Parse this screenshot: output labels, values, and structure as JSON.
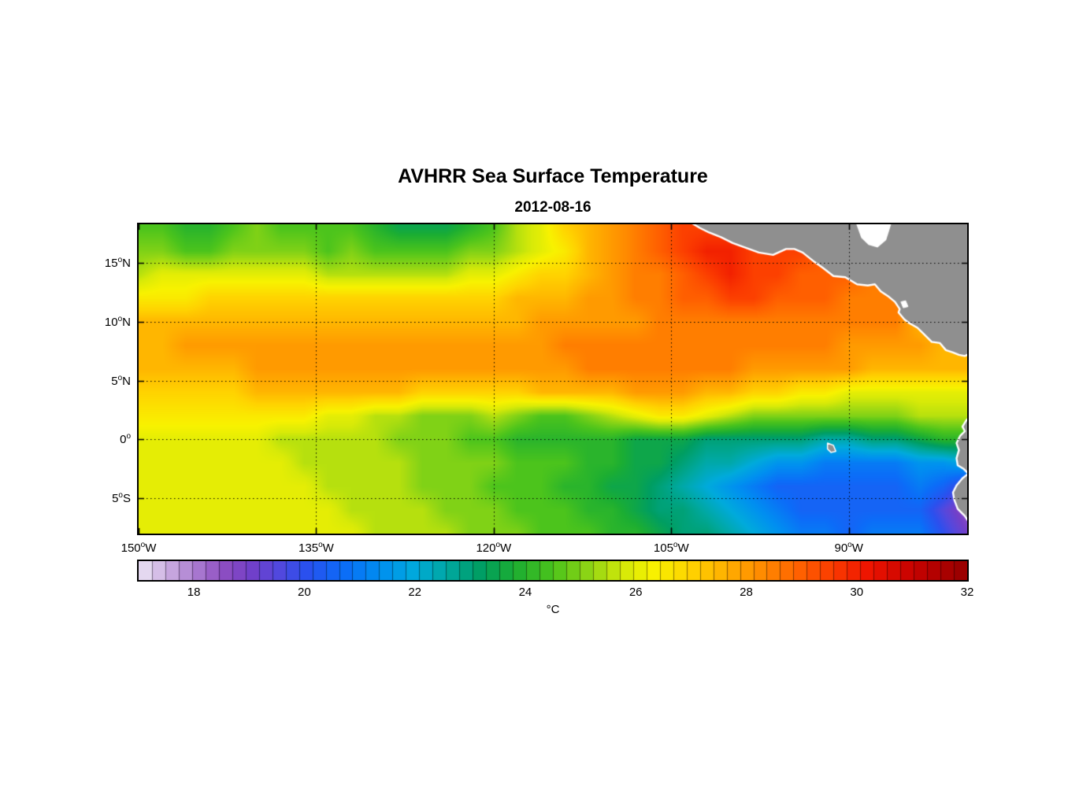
{
  "figure": {
    "title": "AVHRR Sea Surface Temperature",
    "subtitle": "2012-08-16"
  },
  "axes": {
    "lon_range": [
      -150,
      -80
    ],
    "lat_range": [
      -8,
      18.3
    ],
    "x_ticks": [
      {
        "value": -150,
        "label": "150°W"
      },
      {
        "value": -135,
        "label": "135°W"
      },
      {
        "value": -120,
        "label": "120°W"
      },
      {
        "value": -105,
        "label": "105°W"
      },
      {
        "value": -90,
        "label": "90°W"
      }
    ],
    "y_ticks": [
      {
        "value": 15,
        "label": "15°N"
      },
      {
        "value": 10,
        "label": "10°N"
      },
      {
        "value": 5,
        "label": "5°N"
      },
      {
        "value": 0,
        "label": "0°"
      },
      {
        "value": -5,
        "label": "5°S"
      }
    ],
    "grid_lons": [
      -135,
      -120,
      -105,
      -90
    ],
    "grid_lats": [
      15,
      10,
      5,
      0,
      -5
    ]
  },
  "colorbar": {
    "label": "°C",
    "ticks": [
      18,
      20,
      22,
      24,
      26,
      28,
      30,
      32
    ],
    "range": [
      17,
      32
    ],
    "segments": 62,
    "stops": [
      [
        17.0,
        "#ece6f5"
      ],
      [
        17.5,
        "#cdb0e2"
      ],
      [
        18.0,
        "#ad7fd2"
      ],
      [
        18.5,
        "#8f50c2"
      ],
      [
        19.0,
        "#7440c8"
      ],
      [
        19.5,
        "#5548dd"
      ],
      [
        20.0,
        "#2c50ee"
      ],
      [
        20.7,
        "#0c6cf8"
      ],
      [
        21.4,
        "#0090f0"
      ],
      [
        22.0,
        "#00aadc"
      ],
      [
        22.6,
        "#00a8a0"
      ],
      [
        23.2,
        "#009e62"
      ],
      [
        23.8,
        "#1cae32"
      ],
      [
        24.5,
        "#4cc41c"
      ],
      [
        25.2,
        "#95d714"
      ],
      [
        25.8,
        "#d8ea08"
      ],
      [
        26.3,
        "#f8f200"
      ],
      [
        27.0,
        "#ffd300"
      ],
      [
        27.7,
        "#ffab00"
      ],
      [
        28.3,
        "#ff8a00"
      ],
      [
        29.0,
        "#ff5f00"
      ],
      [
        29.6,
        "#fb3a00"
      ],
      [
        30.2,
        "#ee1500"
      ],
      [
        31.0,
        "#c80300"
      ],
      [
        32.0,
        "#970000"
      ]
    ]
  },
  "land": {
    "color": "#8f8f8f",
    "coast_color": "#ffffff",
    "polygons": [
      {
        "name": "central-america",
        "fill": "land",
        "stroke_width": 2.4,
        "points": [
          [
            -103.6,
            18.6
          ],
          [
            -102.6,
            18.0
          ],
          [
            -101.8,
            17.6
          ],
          [
            -100.8,
            17.2
          ],
          [
            -99.8,
            16.7
          ],
          [
            -98.7,
            16.3
          ],
          [
            -97.6,
            15.9
          ],
          [
            -96.4,
            15.7
          ],
          [
            -95.3,
            16.2
          ],
          [
            -94.6,
            16.2
          ],
          [
            -93.9,
            15.9
          ],
          [
            -92.9,
            15.1
          ],
          [
            -92.2,
            14.6
          ],
          [
            -91.3,
            13.9
          ],
          [
            -90.3,
            13.8
          ],
          [
            -89.3,
            13.2
          ],
          [
            -88.4,
            13.1
          ],
          [
            -87.8,
            13.2
          ],
          [
            -87.3,
            12.6
          ],
          [
            -86.7,
            12.2
          ],
          [
            -86.1,
            11.7
          ],
          [
            -85.7,
            11.1
          ],
          [
            -85.8,
            10.8
          ],
          [
            -85.3,
            10.2
          ],
          [
            -84.9,
            9.9
          ],
          [
            -84.2,
            9.5
          ],
          [
            -83.6,
            8.9
          ],
          [
            -83.0,
            8.3
          ],
          [
            -82.3,
            8.2
          ],
          [
            -81.8,
            7.6
          ],
          [
            -81.2,
            7.4
          ],
          [
            -80.7,
            7.2
          ],
          [
            -80.2,
            7.1
          ],
          [
            -79.6,
            7.4
          ],
          [
            -79.5,
            18.6
          ]
        ]
      },
      {
        "name": "gulf-of-honduras",
        "fill": "water",
        "stroke_width": 2.0,
        "points": [
          [
            -89.4,
            18.6
          ],
          [
            -88.9,
            17.2
          ],
          [
            -88.3,
            16.6
          ],
          [
            -87.6,
            16.4
          ],
          [
            -86.9,
            17.0
          ],
          [
            -86.4,
            18.6
          ]
        ]
      },
      {
        "name": "lake-nicaragua",
        "fill": "water",
        "stroke_width": 1.0,
        "points": [
          [
            -85.6,
            11.7
          ],
          [
            -85.2,
            11.8
          ],
          [
            -85.0,
            11.3
          ],
          [
            -85.4,
            11.2
          ]
        ]
      },
      {
        "name": "south-america",
        "fill": "land",
        "stroke_width": 2.4,
        "points": [
          [
            -79.5,
            2.2
          ],
          [
            -80.1,
            1.6
          ],
          [
            -80.4,
            1.1
          ],
          [
            -80.2,
            0.7
          ],
          [
            -80.6,
            0.3
          ],
          [
            -80.9,
            -0.3
          ],
          [
            -80.7,
            -0.9
          ],
          [
            -80.9,
            -1.6
          ],
          [
            -80.8,
            -2.2
          ],
          [
            -80.3,
            -2.5
          ],
          [
            -79.9,
            -2.9
          ],
          [
            -80.4,
            -3.3
          ],
          [
            -80.9,
            -3.9
          ],
          [
            -81.2,
            -4.5
          ],
          [
            -81.1,
            -5.1
          ],
          [
            -80.8,
            -5.9
          ],
          [
            -80.2,
            -6.5
          ],
          [
            -79.8,
            -7.1
          ],
          [
            -79.5,
            -8.5
          ]
        ]
      },
      {
        "name": "galapagos-islands",
        "fill": "land",
        "stroke_width": 1.5,
        "points": [
          [
            -91.8,
            -0.3
          ],
          [
            -91.3,
            -0.5
          ],
          [
            -91.1,
            -1.0
          ],
          [
            -91.5,
            -1.1
          ],
          [
            -91.8,
            -0.8
          ]
        ]
      }
    ]
  },
  "chart_data": {
    "type": "heatmap",
    "title": "AVHRR Sea Surface Temperature",
    "subtitle": "2012-08-16",
    "units": "°C",
    "value_range": [
      17,
      32
    ],
    "lon": [
      -150,
      -148,
      -146,
      -144,
      -142,
      -140,
      -138,
      -136,
      -134,
      -132,
      -130,
      -128,
      -126,
      -124,
      -122,
      -120,
      -118,
      -116,
      -114,
      -112,
      -110,
      -108,
      -106,
      -104,
      -102,
      -100,
      -98,
      -96,
      -94,
      -92,
      -90,
      -88,
      -86,
      -84,
      -82,
      -80
    ],
    "lat": [
      18,
      16,
      14,
      12,
      10,
      8,
      6,
      4,
      2,
      0,
      -2,
      -4,
      -6,
      -8
    ],
    "sst": [
      [
        24.5,
        24.5,
        24,
        24,
        24.5,
        25,
        24.5,
        24.5,
        24.5,
        24.5,
        24,
        23.5,
        23.5,
        23.5,
        24,
        24.5,
        25.5,
        26,
        27,
        27.5,
        28,
        28.5,
        29,
        29.5,
        29.5,
        29.5,
        29.5,
        29.5,
        29,
        29,
        29,
        29,
        29,
        29,
        29,
        29
      ],
      [
        25,
        25,
        24.5,
        24.5,
        25,
        25,
        25,
        25,
        24.5,
        25,
        24.5,
        24.5,
        24.5,
        24.5,
        25,
        25,
        25.5,
        26,
        26.5,
        27.5,
        28,
        28.5,
        29,
        29.5,
        30,
        30,
        29.5,
        29.5,
        29.5,
        29,
        29,
        29,
        29,
        29,
        28.5,
        28.5
      ],
      [
        25.5,
        26,
        26,
        26,
        26,
        26,
        26,
        26,
        25.5,
        25.5,
        25.5,
        25.5,
        25.5,
        25.5,
        26,
        26,
        26.5,
        27,
        27,
        27.5,
        28,
        28.5,
        28.5,
        29,
        29.5,
        30,
        29.5,
        29.5,
        29,
        29,
        29,
        28.5,
        28.5,
        28,
        28,
        28
      ],
      [
        26.5,
        26.5,
        26.5,
        27,
        27,
        27,
        27,
        27,
        27,
        27,
        27,
        27,
        27,
        27,
        27,
        27,
        27.5,
        27.5,
        27.5,
        28,
        28,
        28.5,
        28.5,
        29,
        29,
        29.5,
        29.5,
        29,
        29,
        29,
        28.5,
        28.5,
        28.5,
        28,
        28,
        28
      ],
      [
        27.5,
        27.5,
        27.5,
        27.5,
        27.5,
        27.5,
        27.5,
        27.5,
        27.5,
        27.5,
        27.5,
        27.5,
        27.5,
        27.5,
        27.5,
        27.5,
        27.5,
        28,
        28,
        28,
        28,
        28,
        28.5,
        28.5,
        28.5,
        28.5,
        28.5,
        28.5,
        28.5,
        28.5,
        28.5,
        28.5,
        28.5,
        27.5,
        27.5,
        27.5
      ],
      [
        27.5,
        27.5,
        28,
        28,
        28,
        28,
        28,
        28,
        28,
        28,
        28,
        28,
        28,
        28,
        28,
        28,
        28,
        28,
        28.5,
        28.5,
        28.5,
        28.5,
        28.5,
        28.5,
        28.5,
        28.5,
        28.5,
        28.5,
        28.5,
        28.5,
        28,
        28,
        28,
        28,
        27.5,
        27.5
      ],
      [
        27.5,
        27.5,
        27.5,
        27.5,
        27.5,
        28,
        28,
        28,
        28,
        28,
        28,
        28,
        28,
        28,
        28,
        28,
        28,
        28,
        28,
        28.5,
        28.5,
        28.5,
        28.5,
        28.5,
        28.5,
        28.5,
        28,
        28,
        28,
        28,
        28,
        27.5,
        27.5,
        27.5,
        27.5,
        27.5
      ],
      [
        27,
        27,
        27,
        27,
        27,
        27.5,
        27.5,
        27.5,
        27.5,
        27.5,
        27.5,
        27.5,
        27,
        27,
        27,
        27,
        27,
        27.5,
        27.5,
        27.5,
        27.5,
        28,
        28,
        28,
        27.5,
        27.5,
        27,
        27,
        26.5,
        26.5,
        26,
        26,
        26,
        26,
        26,
        26
      ],
      [
        26.5,
        26.5,
        26.5,
        26.5,
        26.5,
        26.5,
        26.5,
        26.5,
        26,
        26,
        25.5,
        25.5,
        25,
        25,
        25,
        25.5,
        25,
        24.5,
        24.5,
        25,
        25.5,
        26,
        26.5,
        26.5,
        26,
        25.5,
        25,
        25,
        25,
        25,
        25,
        25,
        25,
        25.5,
        25.5,
        25.5
      ],
      [
        26,
        26,
        26,
        26,
        26,
        26,
        25.5,
        25.5,
        25.5,
        25.5,
        25.5,
        25,
        25,
        25,
        24.5,
        24.5,
        24,
        24,
        24,
        24,
        24,
        23.5,
        23.5,
        23.5,
        23,
        23,
        23,
        23,
        23,
        22.5,
        22.5,
        23,
        23,
        23.5,
        24,
        24
      ],
      [
        26,
        26,
        26,
        26,
        26,
        26,
        26,
        25.5,
        25.5,
        25.5,
        25.5,
        25.5,
        25,
        25,
        25,
        25,
        24.5,
        24.5,
        24.5,
        24,
        24,
        23.5,
        23.5,
        23,
        22.5,
        22.5,
        22,
        21.5,
        21.5,
        21,
        21,
        21,
        21,
        21.5,
        21.5,
        22
      ],
      [
        26,
        26,
        26,
        26,
        26,
        26,
        26,
        26,
        25.5,
        25.5,
        25.5,
        25.5,
        25,
        25,
        25,
        24.5,
        24.5,
        24.5,
        24,
        24,
        23.5,
        23.5,
        23,
        22.5,
        22,
        21.5,
        21,
        20.5,
        20.5,
        20.5,
        20.5,
        20.5,
        20.5,
        21,
        20.5,
        19.5
      ],
      [
        26,
        26,
        26,
        26,
        26,
        26,
        26,
        26,
        26,
        25.5,
        25.5,
        25.5,
        25.5,
        25,
        25,
        25,
        24.5,
        24.5,
        24.5,
        24,
        24,
        23.5,
        23,
        23,
        22.5,
        22,
        21.5,
        21,
        20.5,
        20.5,
        20.5,
        20.5,
        20.5,
        20.5,
        19.5,
        18.5
      ],
      [
        26,
        26,
        26,
        26,
        26,
        26,
        26,
        26,
        26,
        26,
        25.5,
        25.5,
        25.5,
        25.5,
        25,
        25,
        25,
        24.5,
        24.5,
        24.5,
        24,
        24,
        23.5,
        23,
        23,
        22.5,
        22,
        21.5,
        21,
        21,
        20.5,
        21,
        21,
        21,
        20,
        19
      ]
    ]
  }
}
